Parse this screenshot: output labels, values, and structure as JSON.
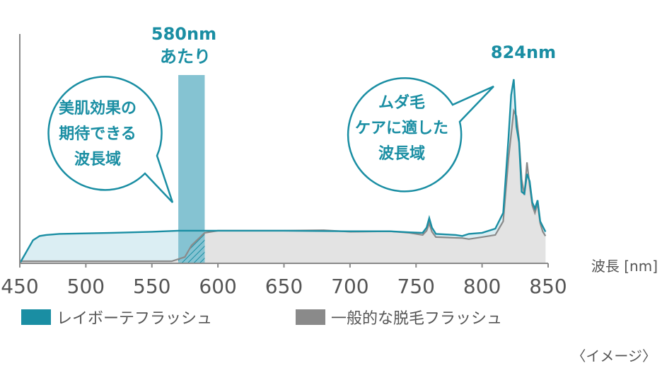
{
  "chart_data": {
    "type": "area",
    "title": "",
    "xlabel": "波長 [nm]",
    "ylabel": "",
    "xlim": [
      450,
      850
    ],
    "x_ticks": [
      "450",
      "500",
      "550",
      "600",
      "650",
      "700",
      "750",
      "800",
      "850"
    ],
    "grid": false,
    "legend_placement": "bottom",
    "series": [
      {
        "name": "レイボーテフラッシュ",
        "color": "#1a8ea3",
        "fill": "#dbeef3",
        "points": [
          [
            450,
            0
          ],
          [
            460,
            22
          ],
          [
            465,
            26
          ],
          [
            470,
            27
          ],
          [
            480,
            28
          ],
          [
            500,
            28.5
          ],
          [
            520,
            29
          ],
          [
            550,
            30
          ],
          [
            570,
            31
          ],
          [
            600,
            31
          ],
          [
            650,
            31
          ],
          [
            700,
            30.5
          ],
          [
            730,
            30.5
          ],
          [
            745,
            29.5
          ],
          [
            755,
            29
          ],
          [
            758,
            34
          ],
          [
            760,
            43
          ],
          [
            762,
            34
          ],
          [
            765,
            28
          ],
          [
            780,
            27
          ],
          [
            785,
            26
          ],
          [
            790,
            28
          ],
          [
            800,
            29
          ],
          [
            810,
            33
          ],
          [
            816,
            48
          ],
          [
            820,
            120
          ],
          [
            822,
            160
          ],
          [
            824,
            175
          ],
          [
            826,
            130
          ],
          [
            828,
            115
          ],
          [
            830,
            68
          ],
          [
            832,
            66
          ],
          [
            834,
            85
          ],
          [
            836,
            78
          ],
          [
            838,
            58
          ],
          [
            840,
            52
          ],
          [
            842,
            60
          ],
          [
            844,
            40
          ],
          [
            846,
            35
          ],
          [
            848,
            30
          ]
        ]
      },
      {
        "name": "一般的な脱毛フラッシュ",
        "color": "#8a8a8a",
        "fill": "#e3e3e3",
        "points": [
          [
            450,
            2
          ],
          [
            565,
            2
          ],
          [
            575,
            6
          ],
          [
            580,
            17
          ],
          [
            590,
            29
          ],
          [
            600,
            31
          ],
          [
            650,
            31
          ],
          [
            680,
            31.5
          ],
          [
            700,
            30
          ],
          [
            730,
            30.5
          ],
          [
            745,
            29
          ],
          [
            755,
            27
          ],
          [
            758,
            31
          ],
          [
            760,
            38
          ],
          [
            762,
            30
          ],
          [
            765,
            25
          ],
          [
            785,
            24
          ],
          [
            790,
            23
          ],
          [
            800,
            25
          ],
          [
            810,
            27
          ],
          [
            816,
            40
          ],
          [
            820,
            100
          ],
          [
            824,
            145
          ],
          [
            826,
            140
          ],
          [
            828,
            118
          ],
          [
            830,
            80
          ],
          [
            832,
            65
          ],
          [
            834,
            96
          ],
          [
            836,
            74
          ],
          [
            838,
            55
          ],
          [
            840,
            48
          ],
          [
            842,
            57
          ],
          [
            844,
            38
          ],
          [
            846,
            30
          ],
          [
            848,
            26
          ]
        ]
      }
    ],
    "highlight_band": {
      "from": 570,
      "to": 590
    },
    "annotations": {
      "peak_580_line1": "580nm",
      "peak_580_line2": "あたり",
      "peak_824": "824nm",
      "bubble_left": [
        "美肌効果の",
        "期待できる",
        "波長域"
      ],
      "bubble_right": [
        "ムダ毛",
        "ケアに適した",
        "波長域"
      ]
    },
    "note": "〈イメージ〉"
  },
  "colors": {
    "teal": "#1a8ea3",
    "teal_fill": "#dbeef3",
    "band": "#85c3d2",
    "gray": "#8a8a8a",
    "gray_fill": "#e3e3e3"
  }
}
